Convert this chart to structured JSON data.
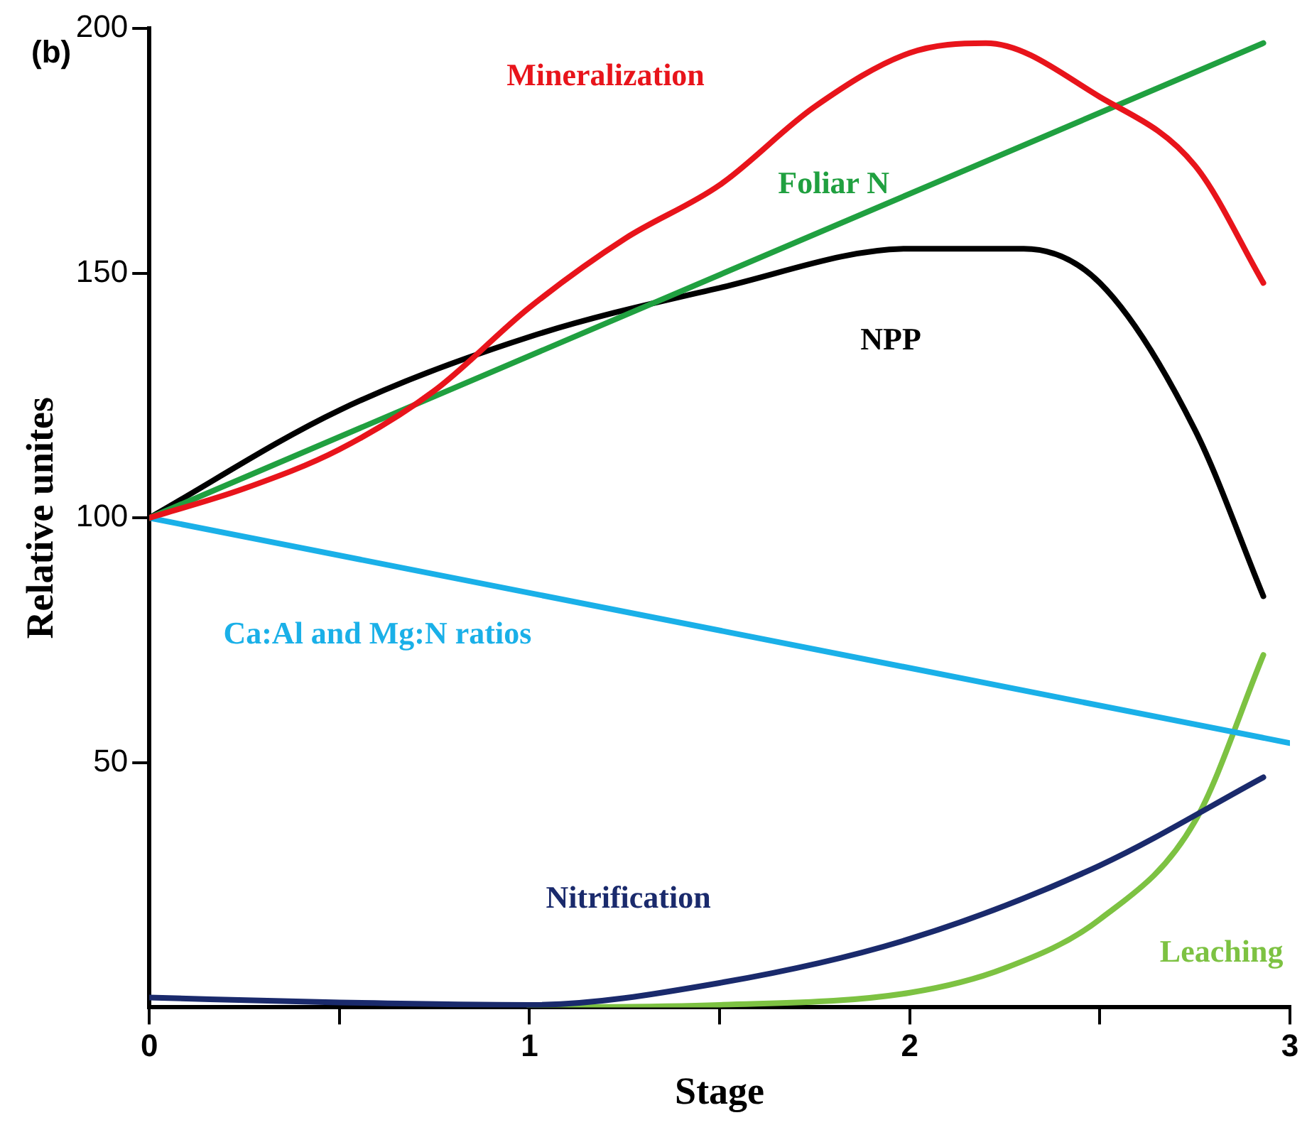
{
  "chart_data": {
    "type": "line",
    "xlabel": "Stage",
    "ylabel": "Relative unites",
    "annotations": [
      "(b)"
    ],
    "xlim": [
      0,
      3
    ],
    "xticks": [
      0,
      {
        "value": 0.5,
        "label": null
      },
      1,
      {
        "value": 1.5,
        "label": null
      },
      2,
      {
        "value": 2.5,
        "label": null
      },
      3
    ],
    "ylim": [
      0,
      200
    ],
    "yticks": [
      50,
      100,
      150,
      200
    ],
    "grid": false,
    "legend": false,
    "marker": "none",
    "line_style": "solid",
    "series": [
      {
        "name": "Mineralization",
        "color": "#e8141b",
        "x": [
          0,
          0.25,
          0.5,
          0.75,
          1,
          1.25,
          1.5,
          1.75,
          2,
          2.2,
          2.5,
          2.75,
          2.93
        ],
        "values": [
          100,
          106,
          114,
          126,
          143,
          157,
          168,
          184,
          195,
          197,
          186,
          172,
          148
        ]
      },
      {
        "name": "Foliar N",
        "color": "#20a040",
        "x": [
          0,
          2.93
        ],
        "values": [
          100,
          197
        ]
      },
      {
        "name": "NPP",
        "color": "#000000",
        "x": [
          0,
          0.5,
          1,
          1.5,
          2,
          2.3,
          2.5,
          2.75,
          2.93
        ],
        "values": [
          100,
          122,
          137,
          147,
          155,
          155,
          148,
          118,
          84
        ]
      },
      {
        "name": "Ca:Al and Mg:N ratios",
        "color": "#1ab0e8",
        "x": [
          0,
          3
        ],
        "values": [
          100,
          54
        ]
      },
      {
        "name": "Nitrification",
        "color": "#1a2a6c",
        "x": [
          0,
          0.5,
          1,
          1.5,
          2,
          2.5,
          2.93
        ],
        "values": [
          2,
          1,
          0.5,
          5,
          14,
          29,
          47
        ]
      },
      {
        "name": "Leaching",
        "color": "#7dc242",
        "x": [
          1,
          1.5,
          2,
          2.25,
          2.5,
          2.75,
          2.93
        ],
        "values": [
          0,
          0.5,
          3,
          8,
          18,
          38,
          72
        ]
      }
    ]
  }
}
